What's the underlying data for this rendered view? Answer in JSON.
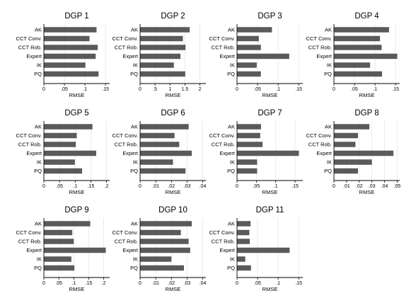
{
  "chart_data": [
    {
      "type": "bar",
      "title": "DGP 1",
      "xlabel": "RMSE",
      "categories": [
        "AK",
        "CCT Conv.",
        "CCT Rob.",
        "Expert",
        "IK",
        "PQ"
      ],
      "values": [
        0.128,
        0.111,
        0.131,
        0.126,
        0.101,
        0.133
      ],
      "xlim": [
        0,
        0.16
      ],
      "xticks": [
        0,
        0.05,
        0.1,
        0.15
      ],
      "xtick_labels": [
        "0",
        ".05",
        ".1",
        ".15"
      ]
    },
    {
      "type": "bar",
      "title": "DGP 2",
      "xlabel": "RMSE",
      "categories": [
        "AK",
        "CCT Conv.",
        "CCT Rob.",
        "Expert",
        "IK",
        "PQ"
      ],
      "values": [
        1.66,
        1.43,
        1.52,
        1.35,
        1.13,
        1.51
      ],
      "xlim": [
        0,
        2.2
      ],
      "xticks": [
        0,
        0.5,
        1,
        1.5,
        2
      ],
      "xtick_labels": [
        "0",
        ".5",
        "1",
        "1.5",
        "2"
      ]
    },
    {
      "type": "bar",
      "title": "DGP 3",
      "xlabel": "RMSE",
      "categories": [
        "AK",
        "CCT Conv.",
        "CCT Rob.",
        "Expert",
        "IK",
        "PQ"
      ],
      "values": [
        0.085,
        0.053,
        0.058,
        0.127,
        0.048,
        0.058
      ],
      "xlim": [
        0,
        0.16
      ],
      "xticks": [
        0,
        0.05,
        0.1,
        0.15
      ],
      "xtick_labels": [
        "0",
        ".05",
        ".1",
        ".15"
      ]
    },
    {
      "type": "bar",
      "title": "DGP 4",
      "xlabel": "RMSE",
      "categories": [
        "AK",
        "CCT Conv.",
        "CCT Rob.",
        "Expert",
        "IK",
        "PQ"
      ],
      "values": [
        0.134,
        0.112,
        0.116,
        0.154,
        0.088,
        0.117
      ],
      "xlim": [
        0,
        0.16
      ],
      "xticks": [
        0,
        0.05,
        0.1,
        0.15
      ],
      "xtick_labels": [
        "0",
        ".05",
        ".1",
        ".15"
      ]
    },
    {
      "type": "bar",
      "title": "DGP 5",
      "xlabel": "RMSE",
      "categories": [
        "AK",
        "CCT Conv.",
        "CCT Rob.",
        "Expert",
        "IK",
        "PQ"
      ],
      "values": [
        0.155,
        0.105,
        0.102,
        0.167,
        0.099,
        0.122
      ],
      "xlim": [
        0,
        0.21
      ],
      "xticks": [
        0,
        0.05,
        0.1,
        0.15,
        0.2
      ],
      "xtick_labels": [
        "0",
        ".05",
        ".1",
        ".15",
        ".2"
      ]
    },
    {
      "type": "bar",
      "title": "DGP 6",
      "xlabel": "RMSE",
      "categories": [
        "AK",
        "CCT Conv.",
        "CCT Rob.",
        "Expert",
        "IK",
        "PQ"
      ],
      "values": [
        0.031,
        0.022,
        0.025,
        0.033,
        0.021,
        0.029
      ],
      "xlim": [
        0,
        0.042
      ],
      "xticks": [
        0,
        0.01,
        0.02,
        0.03,
        0.04
      ],
      "xtick_labels": [
        "0",
        ".01",
        ".02",
        ".03",
        ".04"
      ]
    },
    {
      "type": "bar",
      "title": "DGP 7",
      "xlabel": "RMSE",
      "categories": [
        "AK",
        "CCT Conv.",
        "CCT Rob.",
        "Expert",
        "IK",
        "PQ"
      ],
      "values": [
        0.062,
        0.06,
        0.066,
        0.16,
        0.052,
        0.052
      ],
      "xlim": [
        0,
        0.17
      ],
      "xticks": [
        0,
        0.05,
        0.1,
        0.15
      ],
      "xtick_labels": [
        "0",
        ".05",
        ".1",
        ".15"
      ]
    },
    {
      "type": "bar",
      "title": "DGP 8",
      "xlabel": "RMSE",
      "categories": [
        "AK",
        "CCT Conv.",
        "CCT Rob.",
        "Expert",
        "IK",
        "PQ"
      ],
      "values": [
        0.028,
        0.019,
        0.017,
        0.047,
        0.03,
        0.019
      ],
      "xlim": [
        0,
        0.052
      ],
      "xticks": [
        0,
        0.01,
        0.02,
        0.03,
        0.04,
        0.05
      ],
      "xtick_labels": [
        "0",
        ".01",
        ".02",
        ".03",
        ".04",
        ".05"
      ]
    },
    {
      "type": "bar",
      "title": "DGP 9",
      "xlabel": "RMSE",
      "categories": [
        "AK",
        "CCT Conv.",
        "CCT Rob.",
        "Expert",
        "IK",
        "PQ"
      ],
      "values": [
        0.155,
        0.095,
        0.1,
        0.207,
        0.092,
        0.102
      ],
      "xlim": [
        0,
        0.22
      ],
      "xticks": [
        0,
        0.05,
        0.1,
        0.15,
        0.2
      ],
      "xtick_labels": [
        "0",
        ".05",
        ".1",
        ".15",
        ".2"
      ]
    },
    {
      "type": "bar",
      "title": "DGP 10",
      "xlabel": "RMSE",
      "categories": [
        "AK",
        "CCT Conv.",
        "CCT Rob.",
        "Expert",
        "IK",
        "PQ"
      ],
      "values": [
        0.033,
        0.026,
        0.031,
        0.032,
        0.02,
        0.028
      ],
      "xlim": [
        0,
        0.042
      ],
      "xticks": [
        0,
        0.01,
        0.02,
        0.03,
        0.04
      ],
      "xtick_labels": [
        "0",
        ".01",
        ".02",
        ".03",
        ".04"
      ]
    },
    {
      "type": "bar",
      "title": "DGP 11",
      "xlabel": "RMSE",
      "categories": [
        "AK",
        "CCT Conv.",
        "CCT Rob.",
        "Expert",
        "IK",
        "PQ"
      ],
      "values": [
        0.033,
        0.03,
        0.031,
        0.128,
        0.02,
        0.034
      ],
      "xlim": [
        0,
        0.16
      ],
      "xticks": [
        0,
        0.05,
        0.1,
        0.15
      ],
      "xtick_labels": [
        "0",
        ".05",
        ".1",
        ".15"
      ]
    }
  ],
  "colors": {
    "bar": "#5a5a5a",
    "grid": "#e6e6e6",
    "axis": "#000000"
  }
}
